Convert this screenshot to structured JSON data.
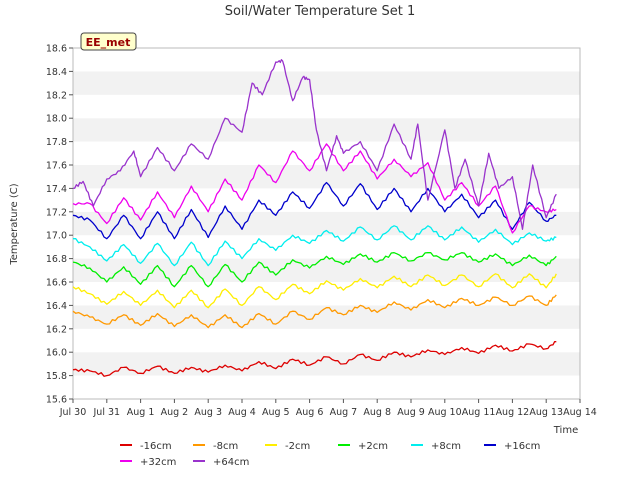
{
  "chart_data": {
    "type": "line",
    "title": "Soil/Water Temperature Set 1",
    "xlabel": "Time",
    "ylabel": "Temperature (C)",
    "site_label": "EE_met",
    "xlim": [
      30,
      45
    ],
    "ylim": [
      15.6,
      18.6
    ],
    "x_ticks": [
      {
        "v": 30,
        "label": "Jul 30"
      },
      {
        "v": 31,
        "label": "Jul 31"
      },
      {
        "v": 32,
        "label": "Aug 1"
      },
      {
        "v": 33,
        "label": "Aug 2"
      },
      {
        "v": 34,
        "label": "Aug 3"
      },
      {
        "v": 35,
        "label": "Aug 4"
      },
      {
        "v": 36,
        "label": "Aug 5"
      },
      {
        "v": 37,
        "label": "Aug 6"
      },
      {
        "v": 38,
        "label": "Aug 7"
      },
      {
        "v": 39,
        "label": "Aug 8"
      },
      {
        "v": 40,
        "label": "Aug 9"
      },
      {
        "v": 41,
        "label": "Aug 10"
      },
      {
        "v": 42,
        "label": "Aug 11"
      },
      {
        "v": 43,
        "label": "Aug 12"
      },
      {
        "v": 44,
        "label": "Aug 13"
      },
      {
        "v": 45,
        "label": "Aug 14"
      }
    ],
    "y_ticks": [
      "15.6",
      "15.8",
      "16.0",
      "16.2",
      "16.4",
      "16.6",
      "16.8",
      "17.0",
      "17.2",
      "17.4",
      "17.6",
      "17.8",
      "18.0",
      "18.2",
      "18.4",
      "18.6"
    ],
    "x_note": "x values are day-of-July (Aug 1 = 32)",
    "grid_bands": true,
    "legend_position": "bottom",
    "series": [
      {
        "name": "-16cm",
        "color": "#dd0000",
        "x": [
          30.0,
          30.5,
          31.0,
          31.5,
          32.0,
          32.5,
          33.0,
          33.5,
          34.0,
          34.5,
          35.0,
          35.5,
          36.0,
          36.5,
          37.0,
          37.5,
          38.0,
          38.5,
          39.0,
          39.5,
          40.0,
          40.5,
          41.0,
          41.5,
          42.0,
          42.5,
          43.0,
          43.5,
          44.0,
          44.3
        ],
        "y": [
          15.85,
          15.84,
          15.8,
          15.87,
          15.82,
          15.88,
          15.82,
          15.87,
          15.83,
          15.89,
          15.84,
          15.92,
          15.86,
          15.94,
          15.89,
          15.96,
          15.9,
          15.98,
          15.93,
          16.0,
          15.96,
          16.02,
          15.98,
          16.04,
          15.99,
          16.06,
          16.01,
          16.07,
          16.03,
          16.09
        ]
      },
      {
        "name": "-8cm",
        "color": "#ff9900",
        "x": [
          30.0,
          30.5,
          31.0,
          31.5,
          32.0,
          32.5,
          33.0,
          33.5,
          34.0,
          34.5,
          35.0,
          35.5,
          36.0,
          36.5,
          37.0,
          37.5,
          38.0,
          38.5,
          39.0,
          39.5,
          40.0,
          40.5,
          41.0,
          41.5,
          42.0,
          42.5,
          43.0,
          43.5,
          44.0,
          44.3
        ],
        "y": [
          16.35,
          16.3,
          16.24,
          16.32,
          16.23,
          16.33,
          16.22,
          16.32,
          16.21,
          16.32,
          16.21,
          16.33,
          16.24,
          16.35,
          16.28,
          16.38,
          16.32,
          16.4,
          16.34,
          16.43,
          16.36,
          16.45,
          16.38,
          16.46,
          16.4,
          16.47,
          16.4,
          16.48,
          16.4,
          16.49
        ]
      },
      {
        "name": "-2cm",
        "color": "#ffee00",
        "x": [
          30.0,
          30.5,
          31.0,
          31.5,
          32.0,
          32.5,
          33.0,
          33.5,
          34.0,
          34.5,
          35.0,
          35.5,
          36.0,
          36.5,
          37.0,
          37.5,
          38.0,
          38.5,
          39.0,
          39.5,
          40.0,
          40.5,
          41.0,
          41.5,
          42.0,
          42.5,
          43.0,
          43.5,
          44.0,
          44.3
        ],
        "y": [
          16.56,
          16.5,
          16.41,
          16.52,
          16.4,
          16.53,
          16.38,
          16.53,
          16.38,
          16.54,
          16.4,
          16.56,
          16.45,
          16.58,
          16.5,
          16.61,
          16.53,
          16.63,
          16.55,
          16.65,
          16.56,
          16.66,
          16.57,
          16.66,
          16.56,
          16.67,
          16.55,
          16.67,
          16.55,
          16.67
        ]
      },
      {
        "name": "+2cm",
        "color": "#00ee00",
        "x": [
          30.0,
          30.5,
          31.0,
          31.5,
          32.0,
          32.5,
          33.0,
          33.5,
          34.0,
          34.5,
          35.0,
          35.5,
          36.0,
          36.5,
          37.0,
          37.5,
          38.0,
          38.5,
          39.0,
          39.5,
          40.0,
          40.5,
          41.0,
          41.5,
          42.0,
          42.5,
          43.0,
          43.5,
          44.0,
          44.3
        ],
        "y": [
          16.77,
          16.72,
          16.6,
          16.73,
          16.58,
          16.74,
          16.56,
          16.74,
          16.56,
          16.75,
          16.6,
          16.77,
          16.66,
          16.79,
          16.72,
          16.82,
          16.75,
          16.84,
          16.77,
          16.85,
          16.78,
          16.85,
          16.79,
          16.85,
          16.77,
          16.84,
          16.74,
          16.83,
          16.74,
          16.82
        ]
      },
      {
        "name": "+8cm",
        "color": "#00eeee",
        "x": [
          30.0,
          30.5,
          31.0,
          31.5,
          32.0,
          32.5,
          33.0,
          33.5,
          34.0,
          34.5,
          35.0,
          35.5,
          36.0,
          36.5,
          37.0,
          37.5,
          38.0,
          38.5,
          39.0,
          39.5,
          40.0,
          40.5,
          41.0,
          41.5,
          42.0,
          42.5,
          43.0,
          43.5,
          44.0,
          44.3
        ],
        "y": [
          16.97,
          16.9,
          16.78,
          16.92,
          16.76,
          16.93,
          16.74,
          16.94,
          16.74,
          16.95,
          16.8,
          16.97,
          16.87,
          17.0,
          16.93,
          17.04,
          16.95,
          17.07,
          16.96,
          17.08,
          16.96,
          17.08,
          16.96,
          17.07,
          16.94,
          17.05,
          16.92,
          17.02,
          16.95,
          16.98
        ]
      },
      {
        "name": "+16cm",
        "color": "#0000cc",
        "x": [
          30.0,
          30.5,
          31.0,
          31.5,
          32.0,
          32.5,
          33.0,
          33.5,
          34.0,
          34.5,
          35.0,
          35.5,
          36.0,
          36.5,
          37.0,
          37.5,
          38.0,
          38.5,
          39.0,
          39.5,
          40.0,
          40.5,
          41.0,
          41.5,
          42.0,
          42.5,
          43.0,
          43.5,
          44.0,
          44.3
        ],
        "y": [
          17.17,
          17.13,
          16.97,
          17.17,
          16.97,
          17.2,
          16.97,
          17.22,
          16.98,
          17.25,
          17.05,
          17.3,
          17.17,
          17.37,
          17.23,
          17.45,
          17.25,
          17.44,
          17.22,
          17.4,
          17.2,
          17.4,
          17.2,
          17.35,
          17.15,
          17.3,
          17.05,
          17.28,
          17.12,
          17.17
        ]
      },
      {
        "name": "+32cm",
        "color": "#ee00ee",
        "x": [
          30.0,
          30.5,
          31.0,
          31.5,
          32.0,
          32.5,
          33.0,
          33.5,
          34.0,
          34.5,
          35.0,
          35.5,
          36.0,
          36.5,
          37.0,
          37.5,
          38.0,
          38.5,
          39.0,
          39.5,
          40.0,
          40.5,
          41.0,
          41.5,
          42.0,
          42.5,
          43.0,
          43.5,
          44.0,
          44.3
        ],
        "y": [
          17.27,
          17.27,
          17.1,
          17.32,
          17.13,
          17.37,
          17.15,
          17.42,
          17.2,
          17.48,
          17.3,
          17.6,
          17.45,
          17.72,
          17.55,
          17.78,
          17.55,
          17.72,
          17.48,
          17.65,
          17.5,
          17.62,
          17.3,
          17.45,
          17.25,
          17.42,
          17.02,
          17.25,
          17.2,
          17.22
        ]
      },
      {
        "name": "+64cm",
        "color": "#9933cc",
        "x": [
          30.0,
          30.3,
          30.6,
          31.0,
          31.4,
          31.8,
          32.0,
          32.5,
          33.0,
          33.5,
          34.0,
          34.5,
          35.0,
          35.3,
          35.6,
          36.0,
          36.2,
          36.5,
          36.8,
          37.0,
          37.2,
          37.5,
          37.8,
          38.0,
          38.5,
          39.0,
          39.5,
          40.0,
          40.2,
          40.5,
          41.0,
          41.3,
          41.6,
          42.0,
          42.3,
          42.6,
          43.0,
          43.3,
          43.6,
          44.0,
          44.3
        ],
        "y": [
          17.4,
          17.46,
          17.25,
          17.48,
          17.55,
          17.72,
          17.5,
          17.75,
          17.55,
          17.78,
          17.65,
          18.0,
          17.88,
          18.3,
          18.2,
          18.48,
          18.49,
          18.15,
          18.35,
          18.33,
          17.9,
          17.55,
          17.85,
          17.7,
          17.8,
          17.55,
          17.95,
          17.65,
          17.95,
          17.3,
          17.9,
          17.4,
          17.65,
          17.25,
          17.7,
          17.4,
          17.5,
          17.05,
          17.6,
          17.15,
          17.35
        ]
      }
    ]
  }
}
